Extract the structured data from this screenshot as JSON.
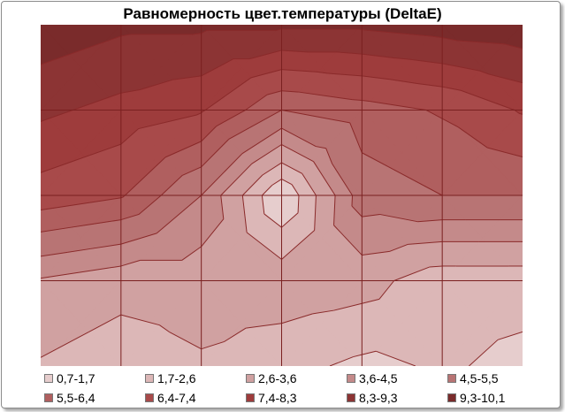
{
  "chart_data": {
    "type": "contour",
    "title": "Равномерность цвет.температуры (DeltaE)",
    "xlabel": "",
    "ylabel": "",
    "grid": true,
    "legend_position": "bottom",
    "x": [
      1,
      2,
      3,
      4,
      5,
      6,
      7
    ],
    "y": [
      1,
      2,
      3,
      4,
      5
    ],
    "z": [
      [
        10.0,
        9.5,
        9.5,
        9.5,
        9.5,
        9.8,
        10.0
      ],
      [
        8.5,
        8.0,
        7.5,
        5.5,
        6.0,
        6.5,
        7.5
      ],
      [
        7.0,
        6.5,
        4.5,
        0.8,
        5.0,
        5.5,
        5.5
      ],
      [
        3.5,
        3.0,
        3.0,
        3.2,
        3.0,
        2.0,
        2.0
      ],
      [
        2.5,
        2.0,
        2.5,
        2.0,
        1.5,
        1.8,
        1.5
      ]
    ],
    "levels": [
      {
        "label": "0,7-1,7",
        "min": 0.7,
        "max": 1.7,
        "color": "#e6cdcd"
      },
      {
        "label": "1,7-2,6",
        "min": 1.7,
        "max": 2.6,
        "color": "#dcb7b7"
      },
      {
        "label": "2,6-3,6",
        "min": 2.6,
        "max": 3.6,
        "color": "#d0a1a1"
      },
      {
        "label": "3,6-4,5",
        "min": 3.6,
        "max": 4.5,
        "color": "#c48a8a"
      },
      {
        "label": "4,5-5,5",
        "min": 4.5,
        "max": 5.5,
        "color": "#b87474"
      },
      {
        "label": "5,5-6,4",
        "min": 5.5,
        "max": 6.4,
        "color": "#b05f5f"
      },
      {
        "label": "6,4-7,4",
        "min": 6.4,
        "max": 7.4,
        "color": "#a84a4a"
      },
      {
        "label": "7,4-8,3",
        "min": 7.4,
        "max": 8.3,
        "color": "#9e3c3c"
      },
      {
        "label": "8,3-9,3",
        "min": 8.3,
        "max": 9.3,
        "color": "#8c3434"
      },
      {
        "label": "9,3-10,1",
        "min": 9.3,
        "max": 10.1,
        "color": "#7a2b2b"
      }
    ]
  }
}
